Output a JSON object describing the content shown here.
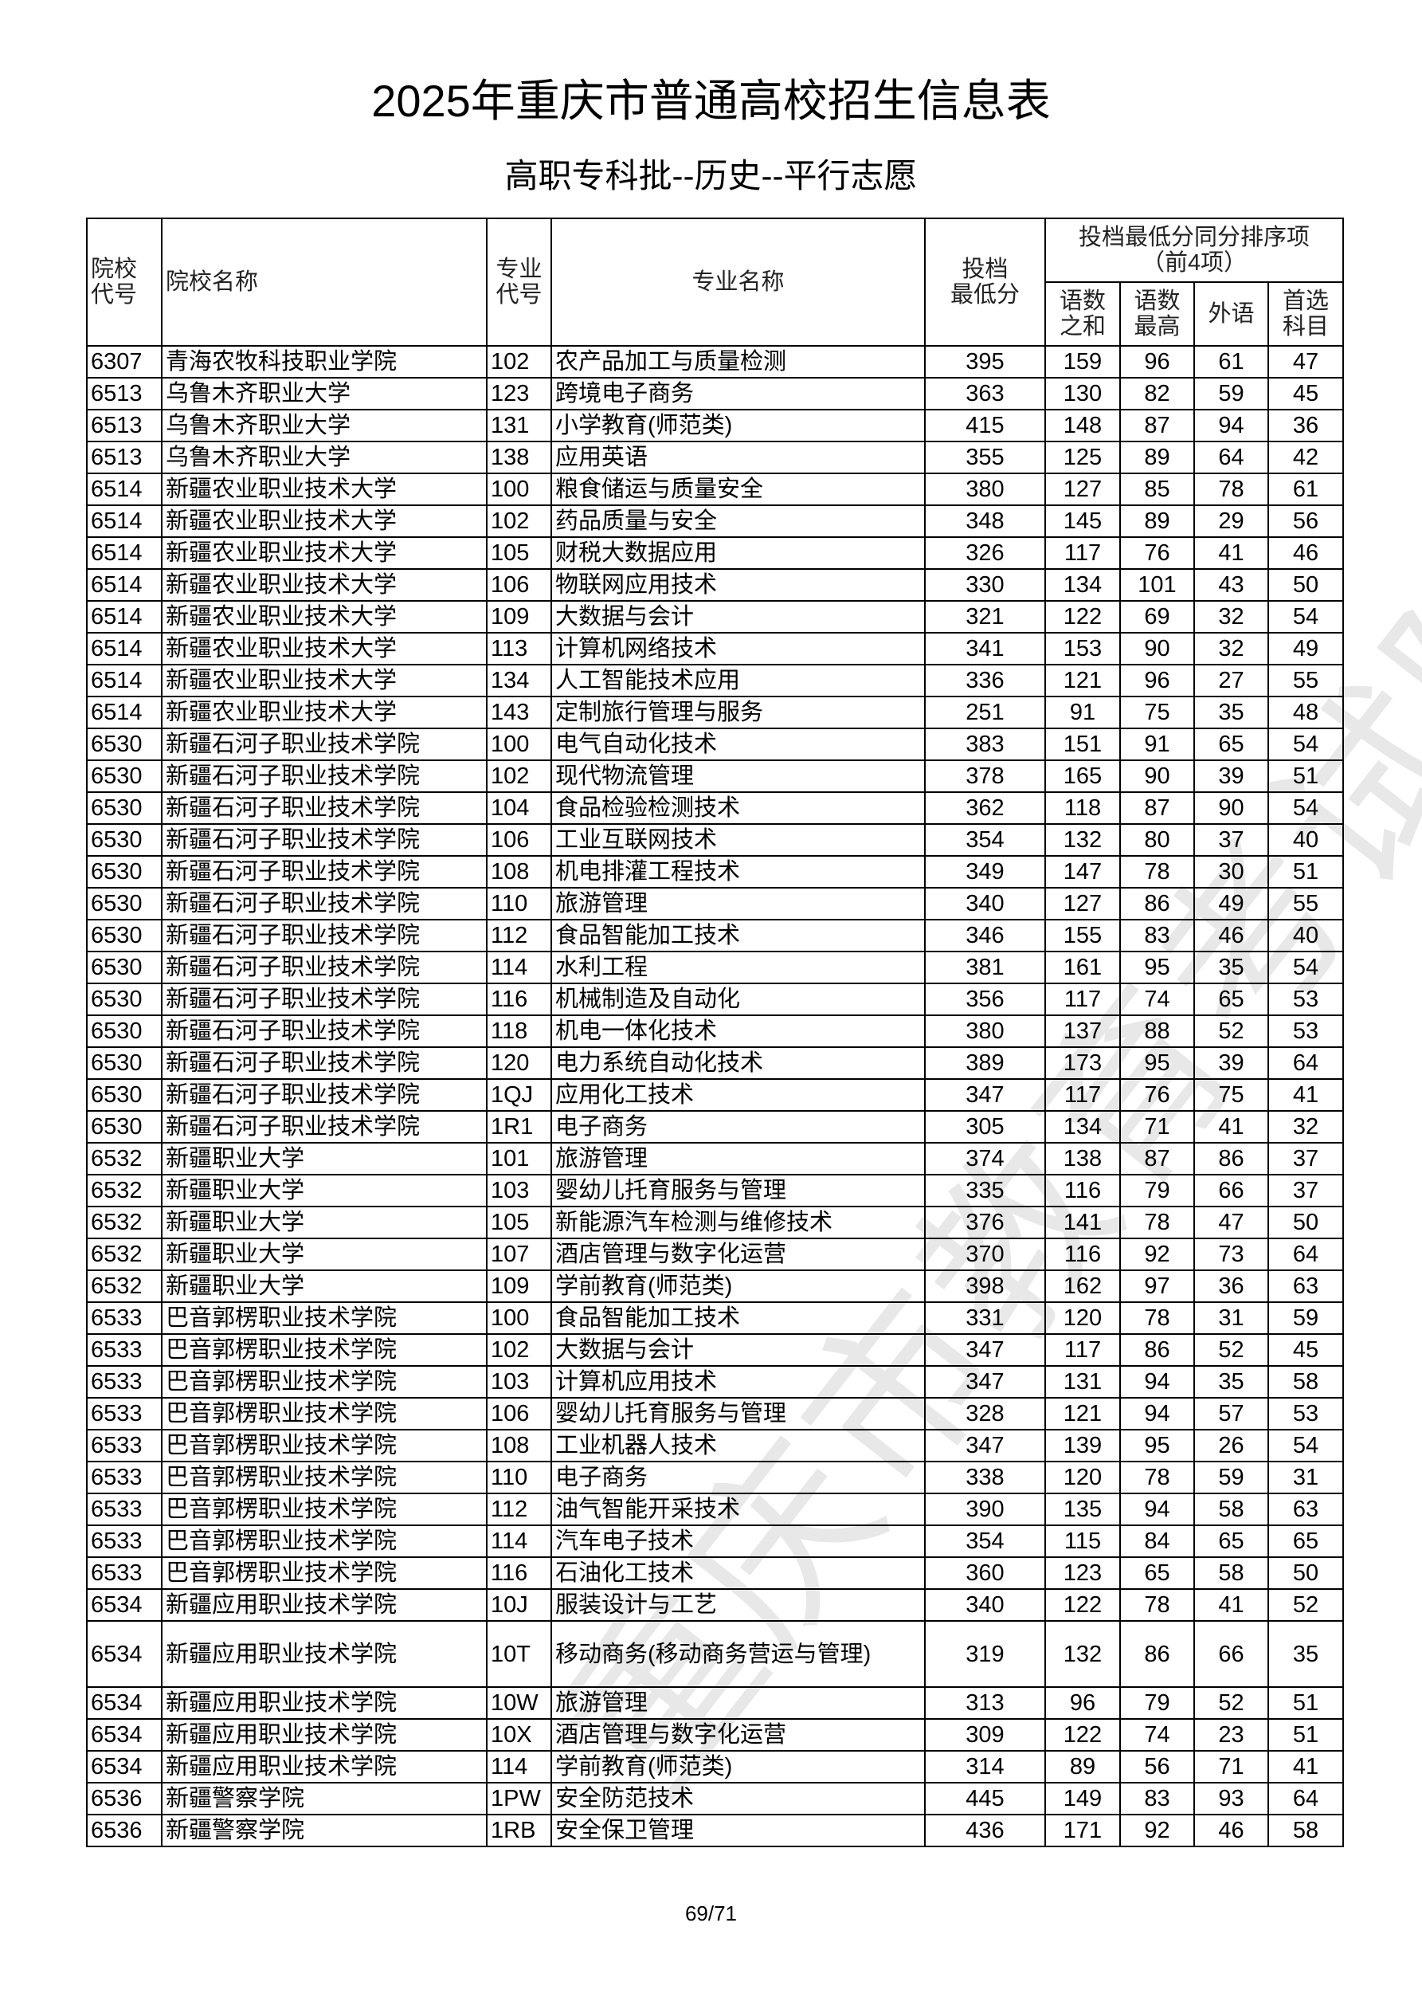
{
  "title": "2025年重庆市普通高校招生信息表",
  "subtitle": "高职专科批--历史--平行志愿",
  "watermark": "重庆市教育考试院",
  "headers": {
    "school_code": "院校\n代号",
    "school_name": "院校名称",
    "major_code": "专业\n代号",
    "major_name": "专业名称",
    "min_score": "投档\n最低分",
    "tiebreak_group": "投档最低分同分排序项\n（前4项）",
    "chinese_math_sum": "语数\n之和",
    "chinese_math_max": "语数\n最高",
    "foreign_language": "外语",
    "first_choice_subject": "首选\n科目"
  },
  "rows": [
    [
      "6307",
      "青海农牧科技职业学院",
      "102",
      "农产品加工与质量检测",
      "395",
      "159",
      "96",
      "61",
      "47"
    ],
    [
      "6513",
      "乌鲁木齐职业大学",
      "123",
      "跨境电子商务",
      "363",
      "130",
      "82",
      "59",
      "45"
    ],
    [
      "6513",
      "乌鲁木齐职业大学",
      "131",
      "小学教育(师范类)",
      "415",
      "148",
      "87",
      "94",
      "36"
    ],
    [
      "6513",
      "乌鲁木齐职业大学",
      "138",
      "应用英语",
      "355",
      "125",
      "89",
      "64",
      "42"
    ],
    [
      "6514",
      "新疆农业职业技术大学",
      "100",
      "粮食储运与质量安全",
      "380",
      "127",
      "85",
      "78",
      "61"
    ],
    [
      "6514",
      "新疆农业职业技术大学",
      "102",
      "药品质量与安全",
      "348",
      "145",
      "89",
      "29",
      "56"
    ],
    [
      "6514",
      "新疆农业职业技术大学",
      "105",
      "财税大数据应用",
      "326",
      "117",
      "76",
      "41",
      "46"
    ],
    [
      "6514",
      "新疆农业职业技术大学",
      "106",
      "物联网应用技术",
      "330",
      "134",
      "101",
      "43",
      "50"
    ],
    [
      "6514",
      "新疆农业职业技术大学",
      "109",
      "大数据与会计",
      "321",
      "122",
      "69",
      "32",
      "54"
    ],
    [
      "6514",
      "新疆农业职业技术大学",
      "113",
      "计算机网络技术",
      "341",
      "153",
      "90",
      "32",
      "49"
    ],
    [
      "6514",
      "新疆农业职业技术大学",
      "134",
      "人工智能技术应用",
      "336",
      "121",
      "96",
      "27",
      "55"
    ],
    [
      "6514",
      "新疆农业职业技术大学",
      "143",
      "定制旅行管理与服务",
      "251",
      "91",
      "75",
      "35",
      "48"
    ],
    [
      "6530",
      "新疆石河子职业技术学院",
      "100",
      "电气自动化技术",
      "383",
      "151",
      "91",
      "65",
      "54"
    ],
    [
      "6530",
      "新疆石河子职业技术学院",
      "102",
      "现代物流管理",
      "378",
      "165",
      "90",
      "39",
      "51"
    ],
    [
      "6530",
      "新疆石河子职业技术学院",
      "104",
      "食品检验检测技术",
      "362",
      "118",
      "87",
      "90",
      "54"
    ],
    [
      "6530",
      "新疆石河子职业技术学院",
      "106",
      "工业互联网技术",
      "354",
      "132",
      "80",
      "37",
      "40"
    ],
    [
      "6530",
      "新疆石河子职业技术学院",
      "108",
      "机电排灌工程技术",
      "349",
      "147",
      "78",
      "30",
      "51"
    ],
    [
      "6530",
      "新疆石河子职业技术学院",
      "110",
      "旅游管理",
      "340",
      "127",
      "86",
      "49",
      "55"
    ],
    [
      "6530",
      "新疆石河子职业技术学院",
      "112",
      "食品智能加工技术",
      "346",
      "155",
      "83",
      "46",
      "40"
    ],
    [
      "6530",
      "新疆石河子职业技术学院",
      "114",
      "水利工程",
      "381",
      "161",
      "95",
      "35",
      "54"
    ],
    [
      "6530",
      "新疆石河子职业技术学院",
      "116",
      "机械制造及自动化",
      "356",
      "117",
      "74",
      "65",
      "53"
    ],
    [
      "6530",
      "新疆石河子职业技术学院",
      "118",
      "机电一体化技术",
      "380",
      "137",
      "88",
      "52",
      "53"
    ],
    [
      "6530",
      "新疆石河子职业技术学院",
      "120",
      "电力系统自动化技术",
      "389",
      "173",
      "95",
      "39",
      "64"
    ],
    [
      "6530",
      "新疆石河子职业技术学院",
      "1QJ",
      "应用化工技术",
      "347",
      "117",
      "76",
      "75",
      "41"
    ],
    [
      "6530",
      "新疆石河子职业技术学院",
      "1R1",
      "电子商务",
      "305",
      "134",
      "71",
      "41",
      "32"
    ],
    [
      "6532",
      "新疆职业大学",
      "101",
      "旅游管理",
      "374",
      "138",
      "87",
      "86",
      "37"
    ],
    [
      "6532",
      "新疆职业大学",
      "103",
      "婴幼儿托育服务与管理",
      "335",
      "116",
      "79",
      "66",
      "37"
    ],
    [
      "6532",
      "新疆职业大学",
      "105",
      "新能源汽车检测与维修技术",
      "376",
      "141",
      "78",
      "47",
      "50"
    ],
    [
      "6532",
      "新疆职业大学",
      "107",
      "酒店管理与数字化运营",
      "370",
      "116",
      "92",
      "73",
      "64"
    ],
    [
      "6532",
      "新疆职业大学",
      "109",
      "学前教育(师范类)",
      "398",
      "162",
      "97",
      "36",
      "63"
    ],
    [
      "6533",
      "巴音郭楞职业技术学院",
      "100",
      "食品智能加工技术",
      "331",
      "120",
      "78",
      "31",
      "59"
    ],
    [
      "6533",
      "巴音郭楞职业技术学院",
      "102",
      "大数据与会计",
      "347",
      "117",
      "86",
      "52",
      "45"
    ],
    [
      "6533",
      "巴音郭楞职业技术学院",
      "103",
      "计算机应用技术",
      "347",
      "131",
      "94",
      "35",
      "58"
    ],
    [
      "6533",
      "巴音郭楞职业技术学院",
      "106",
      "婴幼儿托育服务与管理",
      "328",
      "121",
      "94",
      "57",
      "53"
    ],
    [
      "6533",
      "巴音郭楞职业技术学院",
      "108",
      "工业机器人技术",
      "347",
      "139",
      "95",
      "26",
      "54"
    ],
    [
      "6533",
      "巴音郭楞职业技术学院",
      "110",
      "电子商务",
      "338",
      "120",
      "78",
      "59",
      "31"
    ],
    [
      "6533",
      "巴音郭楞职业技术学院",
      "112",
      "油气智能开采技术",
      "390",
      "135",
      "94",
      "58",
      "63"
    ],
    [
      "6533",
      "巴音郭楞职业技术学院",
      "114",
      "汽车电子技术",
      "354",
      "115",
      "84",
      "65",
      "65"
    ],
    [
      "6533",
      "巴音郭楞职业技术学院",
      "116",
      "石油化工技术",
      "360",
      "123",
      "65",
      "58",
      "50"
    ],
    [
      "6534",
      "新疆应用职业技术学院",
      "10J",
      "服装设计与工艺",
      "340",
      "122",
      "78",
      "41",
      "52"
    ],
    [
      "6534",
      "新疆应用职业技术学院",
      "10T",
      "移动商务(移动商务营运与管理)",
      "319",
      "132",
      "86",
      "66",
      "35"
    ],
    [
      "6534",
      "新疆应用职业技术学院",
      "10W",
      "旅游管理",
      "313",
      "96",
      "79",
      "52",
      "51"
    ],
    [
      "6534",
      "新疆应用职业技术学院",
      "10X",
      "酒店管理与数字化运营",
      "309",
      "122",
      "74",
      "23",
      "51"
    ],
    [
      "6534",
      "新疆应用职业技术学院",
      "114",
      "学前教育(师范类)",
      "314",
      "89",
      "56",
      "71",
      "41"
    ],
    [
      "6536",
      "新疆警察学院",
      "1PW",
      "安全防范技术",
      "445",
      "149",
      "83",
      "93",
      "64"
    ],
    [
      "6536",
      "新疆警察学院",
      "1RB",
      "安全保卫管理",
      "436",
      "171",
      "92",
      "46",
      "58"
    ]
  ],
  "page_number": "69/71"
}
